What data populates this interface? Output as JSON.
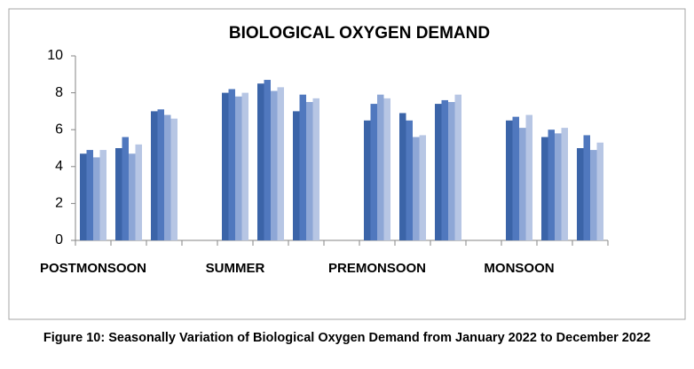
{
  "chart_data": {
    "type": "bar",
    "title": "BIOLOGICAL OXYGEN DEMAND",
    "caption": "Figure 10: Seasonally Variation of Biological Oxygen Demand from January 2022 to December 2022",
    "categories": [
      "POSTMONSOON",
      null,
      null,
      null,
      "SUMMER",
      null,
      null,
      null,
      "PREMONSOON",
      null,
      null,
      null,
      "MONSOON",
      null,
      null
    ],
    "series": [
      {
        "color": "#3b64a8",
        "values": [
          4.7,
          5.0,
          7.0,
          null,
          8.0,
          8.5,
          7.0,
          null,
          6.5,
          6.9,
          7.4,
          null,
          6.5,
          5.6,
          5.0
        ]
      },
      {
        "color": "#5078be",
        "values": [
          4.9,
          5.6,
          7.1,
          null,
          8.2,
          8.7,
          7.9,
          null,
          7.4,
          6.5,
          7.6,
          null,
          6.7,
          6.0,
          5.7
        ]
      },
      {
        "color": "#8ea7d6",
        "values": [
          4.5,
          4.7,
          6.8,
          null,
          7.8,
          8.1,
          7.5,
          null,
          7.9,
          5.6,
          7.5,
          null,
          6.1,
          5.8,
          4.9
        ]
      },
      {
        "color": "#b7c6e4",
        "values": [
          4.9,
          5.2,
          6.6,
          null,
          8.0,
          8.3,
          7.7,
          null,
          7.7,
          5.7,
          7.9,
          null,
          6.8,
          6.1,
          5.3
        ]
      }
    ],
    "ylim": [
      0,
      10
    ],
    "yticks": [
      0,
      2,
      4,
      6,
      8,
      10
    ],
    "grid": false
  }
}
